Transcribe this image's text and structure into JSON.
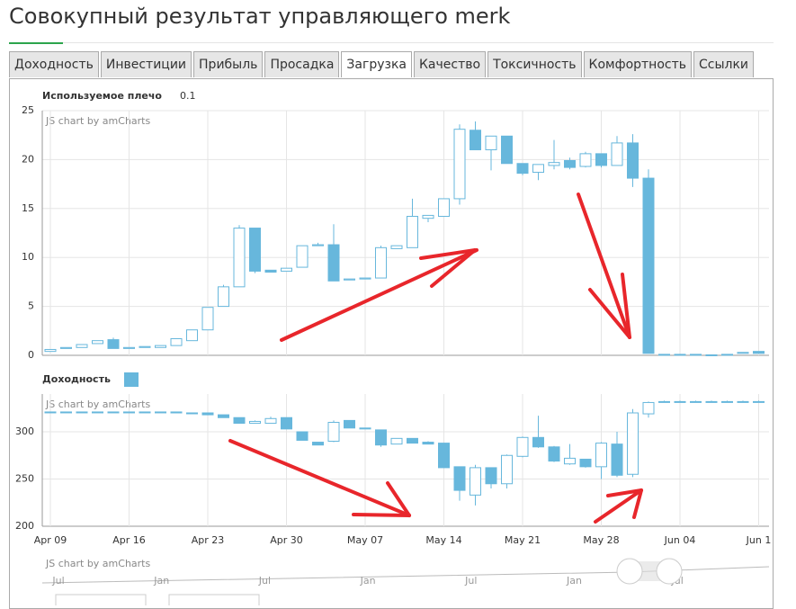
{
  "header": {
    "title": "Совокупный результат управляющего merk"
  },
  "tabs": [
    {
      "label": "Доходность",
      "active": false
    },
    {
      "label": "Инвестиции",
      "active": false
    },
    {
      "label": "Прибыль",
      "active": false
    },
    {
      "label": "Просадка",
      "active": false
    },
    {
      "label": "Загрузка",
      "active": true
    },
    {
      "label": "Качество",
      "active": false
    },
    {
      "label": "Токсичность",
      "active": false
    },
    {
      "label": "Комфортность",
      "active": false
    },
    {
      "label": "Ссылки",
      "active": false
    }
  ],
  "chart_data": [
    {
      "type": "candlestick",
      "legend": "Используемое плечо",
      "legend_value": 0.1,
      "watermark": "JS chart by amCharts",
      "up_color": "#ffffff",
      "down_color": "#67b7dc",
      "line_color": "#67b7dc",
      "ylim": [
        0,
        25
      ],
      "yticks": [
        0,
        5,
        10,
        15,
        20,
        25
      ],
      "grid": true,
      "open": [
        0.4,
        0.7,
        0.8,
        1.2,
        1.6,
        0.7,
        0.8,
        0.8,
        1.0,
        1.5,
        2.6,
        5.0,
        7.0,
        13.0,
        8.7,
        8.6,
        9.0,
        11.2,
        11.3,
        7.7,
        7.8,
        7.9,
        10.9,
        11.0,
        14.0,
        14.2,
        16.0,
        23.0,
        21.0,
        22.4,
        19.6,
        18.7,
        19.4,
        19.9,
        19.3,
        20.6,
        19.4,
        21.7,
        18.1,
        0.1,
        0.1,
        0.1,
        0.05,
        0.1,
        0.2,
        0.4
      ],
      "high": [
        0.6,
        0.8,
        1.1,
        1.5,
        1.8,
        0.8,
        0.9,
        1.0,
        1.7,
        2.6,
        4.9,
        7.2,
        13.3,
        13.0,
        8.7,
        8.9,
        11.2,
        11.5,
        13.4,
        7.8,
        7.9,
        11.2,
        11.2,
        16.0,
        14.3,
        16.0,
        23.6,
        23.9,
        22.4,
        22.4,
        19.6,
        19.5,
        22.0,
        20.2,
        20.8,
        20.6,
        22.4,
        22.6,
        19.0,
        0.1,
        0.1,
        0.1,
        0.05,
        0.1,
        0.3,
        0.4
      ],
      "low": [
        0.4,
        0.7,
        0.8,
        1.2,
        0.7,
        0.7,
        0.8,
        0.8,
        1.0,
        1.5,
        2.6,
        5.0,
        7.0,
        8.4,
        8.5,
        8.6,
        9.0,
        11.2,
        7.6,
        7.7,
        7.8,
        7.9,
        10.9,
        11.0,
        13.6,
        14.2,
        15.4,
        21.0,
        18.9,
        19.6,
        18.4,
        17.9,
        19.0,
        19.0,
        19.2,
        19.2,
        19.4,
        17.2,
        0.2,
        0.1,
        0.1,
        0.1,
        0.05,
        0.1,
        0.2,
        0.2
      ],
      "close": [
        0.6,
        0.8,
        1.1,
        1.5,
        0.7,
        0.8,
        0.9,
        1.0,
        1.7,
        2.6,
        4.9,
        7.0,
        13.0,
        8.6,
        8.5,
        8.9,
        11.2,
        11.3,
        7.6,
        7.8,
        7.9,
        11.0,
        11.2,
        14.2,
        14.3,
        16.0,
        23.1,
        21.0,
        22.4,
        19.6,
        18.6,
        19.5,
        19.7,
        19.2,
        20.6,
        19.4,
        21.7,
        18.1,
        0.2,
        0.1,
        0.1,
        0.1,
        0.05,
        0.1,
        0.3,
        0.2
      ]
    },
    {
      "type": "candlestick",
      "legend": "Доходность",
      "watermark": "JS chart by amCharts",
      "up_color": "#ffffff",
      "down_color": "#67b7dc",
      "line_color": "#67b7dc",
      "ylim": [
        200,
        340
      ],
      "yticks": [
        200,
        250,
        300
      ],
      "grid": true,
      "categories": [
        "Apr 09",
        null,
        null,
        null,
        null,
        "Apr 16",
        null,
        null,
        null,
        null,
        "Apr 23",
        null,
        null,
        null,
        null,
        "Apr 30",
        null,
        null,
        null,
        null,
        "May 07",
        null,
        null,
        null,
        null,
        "May 14",
        null,
        null,
        null,
        null,
        "May 21",
        null,
        null,
        null,
        null,
        "May 28",
        null,
        null,
        null,
        null,
        "Jun 04",
        null,
        null,
        null,
        null,
        "Jun 1"
      ],
      "open": [
        321,
        321,
        321,
        321,
        321,
        321,
        321,
        321,
        321,
        320,
        320,
        318,
        315,
        309,
        309,
        315,
        300,
        289,
        290,
        312,
        304,
        302,
        287,
        293,
        289,
        288,
        263,
        233,
        262,
        245,
        274,
        294,
        284,
        266,
        271,
        263,
        287,
        255,
        319,
        332,
        332,
        332,
        332,
        332,
        332,
        332
      ],
      "high": [
        321,
        321,
        321,
        321,
        321,
        321,
        321,
        321,
        321,
        320,
        320,
        318,
        315,
        312,
        316,
        315,
        300,
        289,
        312,
        312,
        304,
        302,
        293,
        293,
        290,
        288,
        263,
        265,
        262,
        276,
        295,
        317,
        285,
        287,
        271,
        289,
        300,
        324,
        332,
        333,
        333,
        333,
        333,
        333,
        333,
        333
      ],
      "low": [
        321,
        321,
        321,
        321,
        321,
        321,
        321,
        321,
        320,
        320,
        318,
        315,
        309,
        309,
        309,
        303,
        291,
        286,
        289,
        304,
        303,
        284,
        287,
        288,
        287,
        262,
        227,
        222,
        240,
        240,
        273,
        283,
        268,
        265,
        262,
        250,
        252,
        252,
        315,
        332,
        332,
        332,
        332,
        332,
        332,
        332
      ],
      "close": [
        321,
        321,
        321,
        321,
        321,
        321,
        321,
        321,
        320,
        320,
        318,
        315,
        309,
        311,
        314,
        303,
        291,
        286,
        310,
        304,
        303,
        286,
        293,
        288,
        287,
        262,
        238,
        262,
        245,
        275,
        294,
        284,
        269,
        272,
        263,
        288,
        254,
        320,
        331,
        332,
        332,
        332,
        332,
        332,
        332,
        332
      ]
    }
  ],
  "navigator": {
    "watermark": "JS chart by amCharts",
    "labels": [
      "Jul",
      "Jan",
      "Jul",
      "Jan",
      "Jul",
      "Jan",
      "Jul"
    ]
  }
}
